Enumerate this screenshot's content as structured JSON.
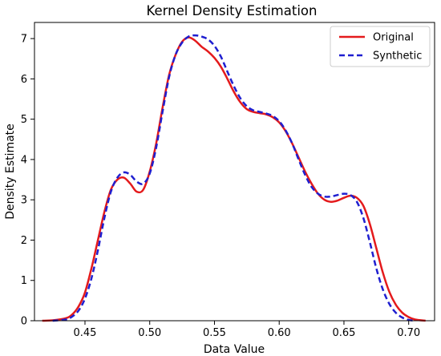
{
  "chart_data": {
    "type": "line",
    "title": "Kernel Density Estimation",
    "xlabel": "Data Value",
    "ylabel": "Density Estimate",
    "xlim": [
      0.411,
      0.72
    ],
    "ylim": [
      0,
      7.4
    ],
    "xticks": [
      "0.45",
      "0.50",
      "0.55",
      "0.60",
      "0.65",
      "0.70"
    ],
    "yticks": [
      "0",
      "1",
      "2",
      "3",
      "4",
      "5",
      "6",
      "7"
    ],
    "grid": false,
    "legend_position": "top-right",
    "series": [
      {
        "name": "Original",
        "color": "#e41a1c",
        "style": "solid",
        "points": [
          [
            0.417,
            0.0
          ],
          [
            0.425,
            0.01
          ],
          [
            0.435,
            0.06
          ],
          [
            0.44,
            0.15
          ],
          [
            0.445,
            0.35
          ],
          [
            0.45,
            0.7
          ],
          [
            0.455,
            1.3
          ],
          [
            0.46,
            2.0
          ],
          [
            0.465,
            2.7
          ],
          [
            0.47,
            3.25
          ],
          [
            0.475,
            3.5
          ],
          [
            0.48,
            3.55
          ],
          [
            0.485,
            3.4
          ],
          [
            0.49,
            3.2
          ],
          [
            0.495,
            3.25
          ],
          [
            0.5,
            3.7
          ],
          [
            0.505,
            4.4
          ],
          [
            0.51,
            5.3
          ],
          [
            0.515,
            6.1
          ],
          [
            0.52,
            6.6
          ],
          [
            0.525,
            6.92
          ],
          [
            0.53,
            7.03
          ],
          [
            0.535,
            6.95
          ],
          [
            0.54,
            6.8
          ],
          [
            0.545,
            6.68
          ],
          [
            0.55,
            6.52
          ],
          [
            0.555,
            6.3
          ],
          [
            0.56,
            6.0
          ],
          [
            0.565,
            5.68
          ],
          [
            0.57,
            5.42
          ],
          [
            0.575,
            5.25
          ],
          [
            0.58,
            5.18
          ],
          [
            0.585,
            5.15
          ],
          [
            0.59,
            5.12
          ],
          [
            0.595,
            5.05
          ],
          [
            0.6,
            4.92
          ],
          [
            0.605,
            4.7
          ],
          [
            0.61,
            4.4
          ],
          [
            0.615,
            4.05
          ],
          [
            0.62,
            3.7
          ],
          [
            0.625,
            3.4
          ],
          [
            0.63,
            3.15
          ],
          [
            0.635,
            3.0
          ],
          [
            0.64,
            2.95
          ],
          [
            0.645,
            2.98
          ],
          [
            0.65,
            3.05
          ],
          [
            0.655,
            3.1
          ],
          [
            0.66,
            3.05
          ],
          [
            0.665,
            2.85
          ],
          [
            0.67,
            2.4
          ],
          [
            0.675,
            1.8
          ],
          [
            0.68,
            1.2
          ],
          [
            0.685,
            0.72
          ],
          [
            0.69,
            0.4
          ],
          [
            0.695,
            0.2
          ],
          [
            0.7,
            0.09
          ],
          [
            0.705,
            0.03
          ],
          [
            0.713,
            0.0
          ]
        ]
      },
      {
        "name": "Synthetic",
        "color": "#1f1fd0",
        "style": "dashed",
        "points": [
          [
            0.425,
            0.0
          ],
          [
            0.435,
            0.03
          ],
          [
            0.44,
            0.1
          ],
          [
            0.445,
            0.25
          ],
          [
            0.45,
            0.55
          ],
          [
            0.455,
            1.05
          ],
          [
            0.46,
            1.75
          ],
          [
            0.465,
            2.55
          ],
          [
            0.47,
            3.2
          ],
          [
            0.475,
            3.55
          ],
          [
            0.48,
            3.68
          ],
          [
            0.485,
            3.62
          ],
          [
            0.49,
            3.45
          ],
          [
            0.495,
            3.4
          ],
          [
            0.5,
            3.65
          ],
          [
            0.505,
            4.3
          ],
          [
            0.51,
            5.2
          ],
          [
            0.515,
            6.05
          ],
          [
            0.52,
            6.6
          ],
          [
            0.525,
            6.9
          ],
          [
            0.53,
            7.05
          ],
          [
            0.535,
            7.08
          ],
          [
            0.54,
            7.05
          ],
          [
            0.545,
            6.98
          ],
          [
            0.55,
            6.82
          ],
          [
            0.555,
            6.55
          ],
          [
            0.56,
            6.18
          ],
          [
            0.565,
            5.82
          ],
          [
            0.57,
            5.52
          ],
          [
            0.575,
            5.32
          ],
          [
            0.58,
            5.22
          ],
          [
            0.585,
            5.18
          ],
          [
            0.59,
            5.14
          ],
          [
            0.595,
            5.08
          ],
          [
            0.6,
            4.95
          ],
          [
            0.605,
            4.72
          ],
          [
            0.61,
            4.4
          ],
          [
            0.615,
            4.0
          ],
          [
            0.62,
            3.62
          ],
          [
            0.625,
            3.32
          ],
          [
            0.63,
            3.15
          ],
          [
            0.635,
            3.08
          ],
          [
            0.64,
            3.08
          ],
          [
            0.645,
            3.12
          ],
          [
            0.65,
            3.15
          ],
          [
            0.655,
            3.12
          ],
          [
            0.66,
            2.95
          ],
          [
            0.665,
            2.55
          ],
          [
            0.67,
            1.95
          ],
          [
            0.675,
            1.3
          ],
          [
            0.68,
            0.78
          ],
          [
            0.685,
            0.42
          ],
          [
            0.69,
            0.2
          ],
          [
            0.695,
            0.08
          ],
          [
            0.7,
            0.02
          ],
          [
            0.705,
            0.0
          ]
        ]
      }
    ]
  }
}
